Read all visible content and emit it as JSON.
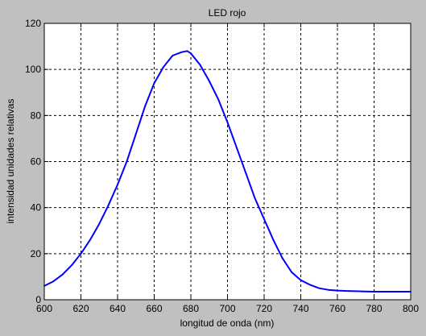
{
  "chart_data": {
    "type": "line",
    "title": "LED rojo",
    "xlabel": "longitud de onda (nm)",
    "ylabel": "intensidad unidades relativas",
    "xlim": [
      600,
      800
    ],
    "ylim": [
      0,
      120
    ],
    "xticks": [
      "600",
      "620",
      "640",
      "660",
      "680",
      "700",
      "720",
      "740",
      "760",
      "780",
      "800"
    ],
    "yticks": [
      "0",
      "20",
      "40",
      "60",
      "80",
      "100",
      "120"
    ],
    "grid": true,
    "colors": {
      "line": "#0000ff",
      "background": "#c0c0c0",
      "plot_area": "#ffffff",
      "grid": "#000000"
    },
    "series": [
      {
        "x": [
          600,
          605,
          610,
          615,
          620,
          625,
          630,
          635,
          640,
          645,
          650,
          655,
          660,
          665,
          670,
          675,
          678,
          680,
          685,
          690,
          695,
          700,
          705,
          710,
          715,
          720,
          725,
          730,
          735,
          740,
          745,
          750,
          755,
          760,
          765,
          770,
          775,
          780,
          790,
          800
        ],
        "y": [
          6,
          8,
          11,
          15,
          20,
          26,
          33,
          41,
          50,
          60,
          72,
          84,
          94,
          101,
          106,
          107.5,
          108,
          107,
          102,
          95,
          87,
          77,
          66,
          55,
          44,
          35,
          26,
          18,
          12,
          8.5,
          6.5,
          5,
          4.3,
          4,
          3.8,
          3.7,
          3.6,
          3.5,
          3.5,
          3.5
        ]
      }
    ]
  }
}
